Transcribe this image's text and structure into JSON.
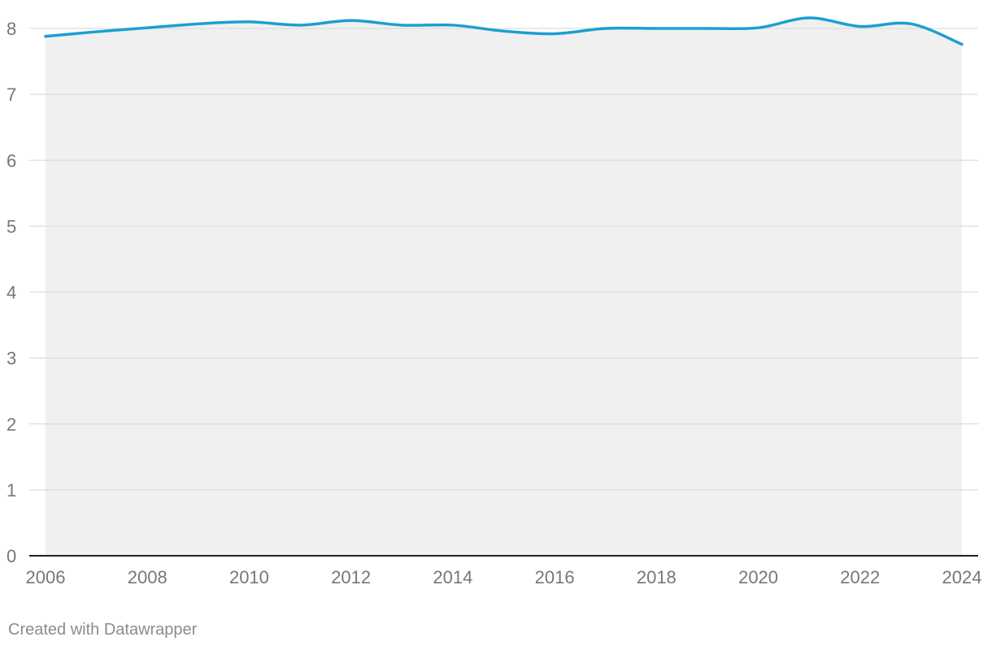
{
  "chart_data": {
    "type": "area",
    "title": "",
    "xlabel": "",
    "ylabel": "",
    "x": [
      2006,
      2007,
      2008,
      2009,
      2010,
      2011,
      2012,
      2013,
      2014,
      2015,
      2016,
      2017,
      2018,
      2019,
      2020,
      2021,
      2022,
      2023,
      2024
    ],
    "series": [
      {
        "values": [
          7.88,
          7.95,
          8.01,
          8.07,
          8.1,
          8.05,
          8.12,
          8.05,
          8.05,
          7.96,
          7.92,
          8.0,
          8.0,
          8.0,
          8.01,
          8.16,
          8.03,
          8.07,
          7.76
        ]
      }
    ],
    "xlim": [
      2006,
      2024
    ],
    "ylim": [
      0,
      8
    ],
    "x_ticks": [
      "2006",
      "2008",
      "2010",
      "2012",
      "2014",
      "2016",
      "2018",
      "2020",
      "2022",
      "2024"
    ],
    "y_ticks": [
      "0",
      "1",
      "2",
      "3",
      "4",
      "5",
      "6",
      "7",
      "8"
    ],
    "grid": true,
    "legend": "none",
    "colors": {
      "line": "#1d9fd0",
      "area": "#f0f0f0",
      "grid": "#dddddd",
      "axis": "#222222",
      "tick_text": "#777777"
    }
  },
  "footer": {
    "credit": "Created with Datawrapper"
  }
}
